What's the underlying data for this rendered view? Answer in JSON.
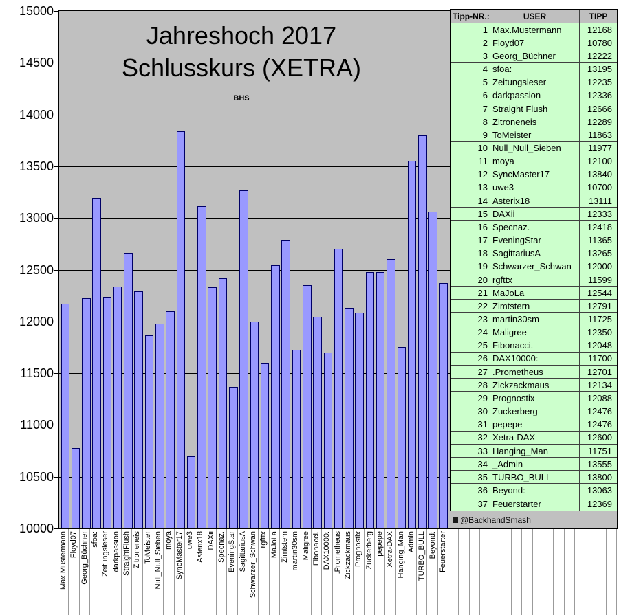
{
  "title": {
    "line1": "Jahreshoch 2017",
    "line2": "Schlusskurs (XETRA)",
    "subtitle": "BHS"
  },
  "footer": {
    "credit": "@BackhandSmash"
  },
  "colors": {
    "plot_background": "#c0c0c0",
    "bar_fill": "#9999ff",
    "bar_border": "#000066",
    "table_row_background": "#ccffcc",
    "table_header_background": "#bfbfbf"
  },
  "table": {
    "headers": [
      "Tipp-NR.:",
      "USER",
      "TIPP"
    ],
    "rows": [
      [
        1,
        "Max.Mustermann",
        12168
      ],
      [
        2,
        "Floyd07",
        10780
      ],
      [
        3,
        "Georg_Büchner",
        12222
      ],
      [
        4,
        "sfoa:",
        13195
      ],
      [
        5,
        "Zeitungsleser",
        12235
      ],
      [
        6,
        "darkpassion",
        12336
      ],
      [
        7,
        "Straight Flush",
        12666
      ],
      [
        8,
        "Zitroneneis",
        12289
      ],
      [
        9,
        "ToMeister",
        11863
      ],
      [
        10,
        "Null_Null_Sieben",
        11977
      ],
      [
        11,
        "moya",
        12100
      ],
      [
        12,
        "SyncMaster17",
        13840
      ],
      [
        13,
        "uwe3",
        10700
      ],
      [
        14,
        "Asterix18",
        13111
      ],
      [
        15,
        "DAXii",
        12333
      ],
      [
        16,
        "Specnaz.",
        12418
      ],
      [
        17,
        "EveningStar",
        11365
      ],
      [
        18,
        "SagittariusA",
        13265
      ],
      [
        19,
        "Schwarzer_Schwan",
        12000
      ],
      [
        20,
        "rgfttx",
        11599
      ],
      [
        21,
        "MaJoLa",
        12544
      ],
      [
        22,
        "Zimtstern",
        12791
      ],
      [
        23,
        "martin30sm",
        11725
      ],
      [
        24,
        "Maligree",
        12350
      ],
      [
        25,
        "Fibonacci.",
        12048
      ],
      [
        26,
        "DAX10000:",
        11700
      ],
      [
        27,
        ".Prometheus",
        12701
      ],
      [
        28,
        "Zickzackmaus",
        12134
      ],
      [
        29,
        "Prognostix",
        12088
      ],
      [
        30,
        "Zuckerberg",
        12476
      ],
      [
        31,
        "pepepe",
        12476
      ],
      [
        32,
        "Xetra-DAX",
        12600
      ],
      [
        33,
        "Hanging_Man",
        11751
      ],
      [
        34,
        "_Admin",
        13555
      ],
      [
        35,
        "TURBO_BULL",
        13800
      ],
      [
        36,
        "Beyond:",
        13063
      ],
      [
        37,
        "Feuerstarter",
        12369
      ]
    ]
  },
  "chart_data": {
    "type": "bar",
    "title": "Jahreshoch 2017 Schlusskurs (XETRA)",
    "xlabel": "",
    "ylabel": "",
    "ylim": [
      10000,
      15000
    ],
    "yticks": [
      10000,
      10500,
      11000,
      11500,
      12000,
      12500,
      13000,
      13500,
      14000,
      14500,
      15000
    ],
    "grid": true,
    "legend": false,
    "categories": [
      "Max.Mustermann",
      "Floyd07",
      "Georg_Büchner",
      "sfoa:",
      "Zeitungsleser",
      "darkpassion",
      "StraightFlush",
      "Zitroneneis",
      "ToMeister",
      "Null_Null_Sieben",
      "moya",
      "SyncMaster17",
      "uwe3",
      "Asterix18",
      "DAXii",
      "Specnaz.",
      "EveningStar",
      "SagittariusA",
      "Schwarzer_Schwan",
      "rgfttx",
      "MaJoLa",
      "Zimtstern",
      "martin30sm",
      "Maligree",
      "Fibonacci.",
      "DAX10000:",
      ".Prometheus",
      "Zickzackmaus",
      "Prognostix",
      "Zuckerberg",
      "pepepe",
      "Xetra-DAX",
      "Hanging_Man",
      "Admin",
      "TURBO_BULL",
      "Beyond:",
      "Feuerstarter"
    ],
    "values": [
      12168,
      10780,
      12222,
      13195,
      12235,
      12336,
      12666,
      12289,
      11863,
      11977,
      12100,
      13840,
      10700,
      13111,
      12333,
      12418,
      11365,
      13265,
      12000,
      11599,
      12544,
      12791,
      11725,
      12350,
      12048,
      11700,
      12701,
      12134,
      12088,
      12476,
      12476,
      12600,
      11751,
      13555,
      13800,
      13063,
      12369
    ]
  }
}
